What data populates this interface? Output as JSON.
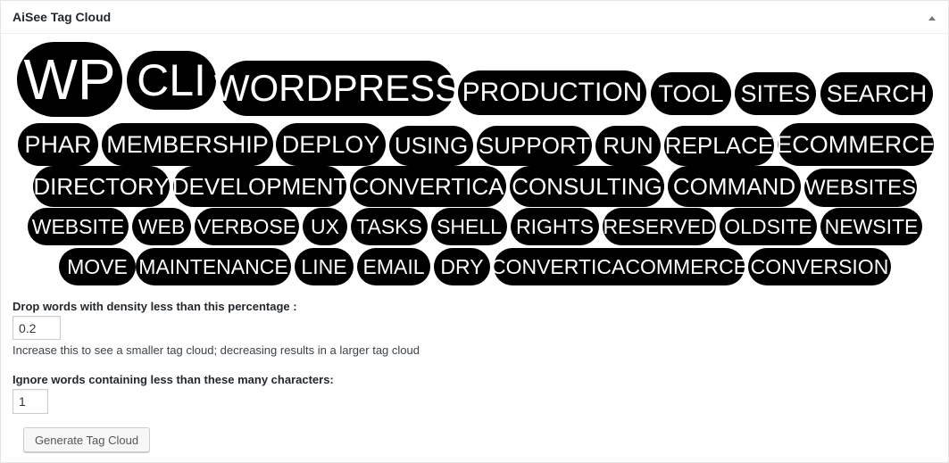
{
  "panel": {
    "title": "AiSee Tag Cloud",
    "toggle_icon": "triangle-up-icon"
  },
  "tags": [
    {
      "text": "WP"
    },
    {
      "text": "CLI"
    },
    {
      "text": "WORDPRESS"
    },
    {
      "text": "PRODUCTION"
    },
    {
      "text": "TOOL"
    },
    {
      "text": "SITES"
    },
    {
      "text": "SEARCH"
    },
    {
      "text": "PHAR"
    },
    {
      "text": "MEMBERSHIP"
    },
    {
      "text": "DEPLOY"
    },
    {
      "text": "USING"
    },
    {
      "text": "SUPPORT"
    },
    {
      "text": "RUN"
    },
    {
      "text": "REPLACE"
    },
    {
      "text": "ECOMMERCE"
    },
    {
      "text": "DIRECTORY"
    },
    {
      "text": "DEVELOPMENT"
    },
    {
      "text": "CONVERTICA"
    },
    {
      "text": "CONSULTING"
    },
    {
      "text": "COMMAND"
    },
    {
      "text": "WEBSITES"
    },
    {
      "text": "WEBSITE"
    },
    {
      "text": "WEB"
    },
    {
      "text": "VERBOSE"
    },
    {
      "text": "UX"
    },
    {
      "text": "TASKS"
    },
    {
      "text": "SHELL"
    },
    {
      "text": "RIGHTS"
    },
    {
      "text": "RESERVED"
    },
    {
      "text": "OLDSITE"
    },
    {
      "text": "NEWSITE"
    },
    {
      "text": "MOVE"
    },
    {
      "text": "MAINTENANCE"
    },
    {
      "text": "LINE"
    },
    {
      "text": "EMAIL"
    },
    {
      "text": "DRY"
    },
    {
      "text": "CONVERTICACOMMERCE"
    },
    {
      "text": "CONVERSION"
    }
  ],
  "form": {
    "density_label": "Drop words with density less than this percentage :",
    "density_value": "0.2",
    "density_help": "Increase this to see a smaller tag cloud; decreasing results in a larger tag cloud",
    "min_chars_label": "Ignore words containing less than these many characters:",
    "min_chars_value": "1",
    "generate_button": "Generate Tag Cloud"
  }
}
